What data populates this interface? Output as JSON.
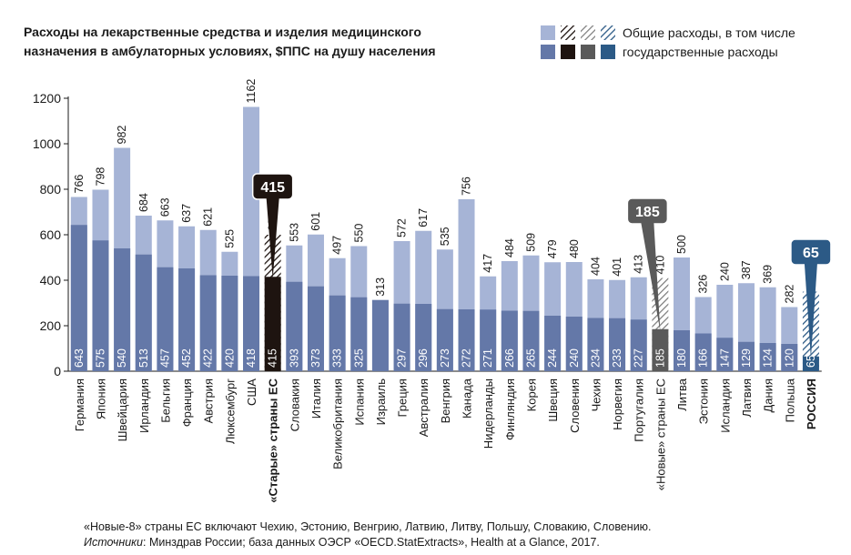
{
  "chart_data": {
    "type": "bar",
    "title_lines": [
      "Расходы на лекарственные средства и изделия медицинского",
      "назначения в амбулаторных условиях, $ППС на душу населения"
    ],
    "legend": {
      "total_label": "Общие расходы, в том числе",
      "public_label": "государственные расходы"
    },
    "ylim": [
      0,
      1200
    ],
    "yticks": [
      0,
      200,
      400,
      600,
      800,
      1000,
      1200
    ],
    "categories": [
      "Германия",
      "Япония",
      "Швейцария",
      "Ирландия",
      "Бельгия",
      "Франция",
      "Австрия",
      "Люксембург",
      "США",
      "«Старые» страны ЕС",
      "Словакия",
      "Италия",
      "Великобритания",
      "Испания",
      "Израиль",
      "Греция",
      "Австралия",
      "Венгрия",
      "Канада",
      "Нидерланды",
      "Финляндия",
      "Корея",
      "Швеция",
      "Словения",
      "Чехия",
      "Норвегия",
      "Португалия",
      "«Новые» страны ЕС",
      "Литва",
      "Эстония",
      "Исландия",
      "Латвия",
      "Дания",
      "Польша",
      "РОССИЯ"
    ],
    "series": [
      {
        "name": "Общие расходы, в том числе",
        "values": [
          766,
          798,
          982,
          684,
          663,
          637,
          621,
          525,
          1162,
          600,
          553,
          601,
          497,
          550,
          313,
          572,
          617,
          535,
          756,
          417,
          484,
          509,
          479,
          480,
          404,
          401,
          413,
          410,
          500,
          326,
          240,
          387,
          369,
          282,
          350
        ]
      },
      {
        "name": "государственные расходы",
        "values": [
          643,
          575,
          540,
          513,
          457,
          452,
          422,
          420,
          418,
          415,
          393,
          373,
          333,
          325,
          313,
          297,
          296,
          273,
          272,
          271,
          266,
          265,
          244,
          240,
          234,
          233,
          227,
          185,
          180,
          166,
          147,
          129,
          124,
          120,
          65
        ]
      }
    ],
    "total_label_overrides": {
      "Исландия": "240"
    },
    "public_label_overrides": {
      "Израиль": ""
    },
    "total_visual_values": {
      "Исландия": 380
    },
    "callouts": [
      {
        "category": "«Старые» страны ЕС",
        "text": "415"
      },
      {
        "category": "«Новые» страны ЕС",
        "text": "185"
      },
      {
        "category": "РОССИЯ",
        "text": "65"
      }
    ],
    "colors": {
      "total": "#a6b4d6",
      "public": "#6478a8",
      "old_eu": "#1e1410",
      "new_eu": "#5a5a5a",
      "russia": "#2c5a86",
      "callout_old": "#1e1410",
      "callout_new": "#5a5a5a",
      "callout_russia": "#2c5a86"
    },
    "grid": false,
    "legend_position": "top-right"
  },
  "footnotes": {
    "line1": "«Новые-8» страны ЕС включают Чехию, Эстонию, Венгрию, Латвию, Литву, Польшу, Словакию, Словению.",
    "sources_label": "Источники",
    "sources_text": ": Минздрав России; база данных ОЭСР «OECD.StatExtracts», Health at a Glance, 2017."
  }
}
